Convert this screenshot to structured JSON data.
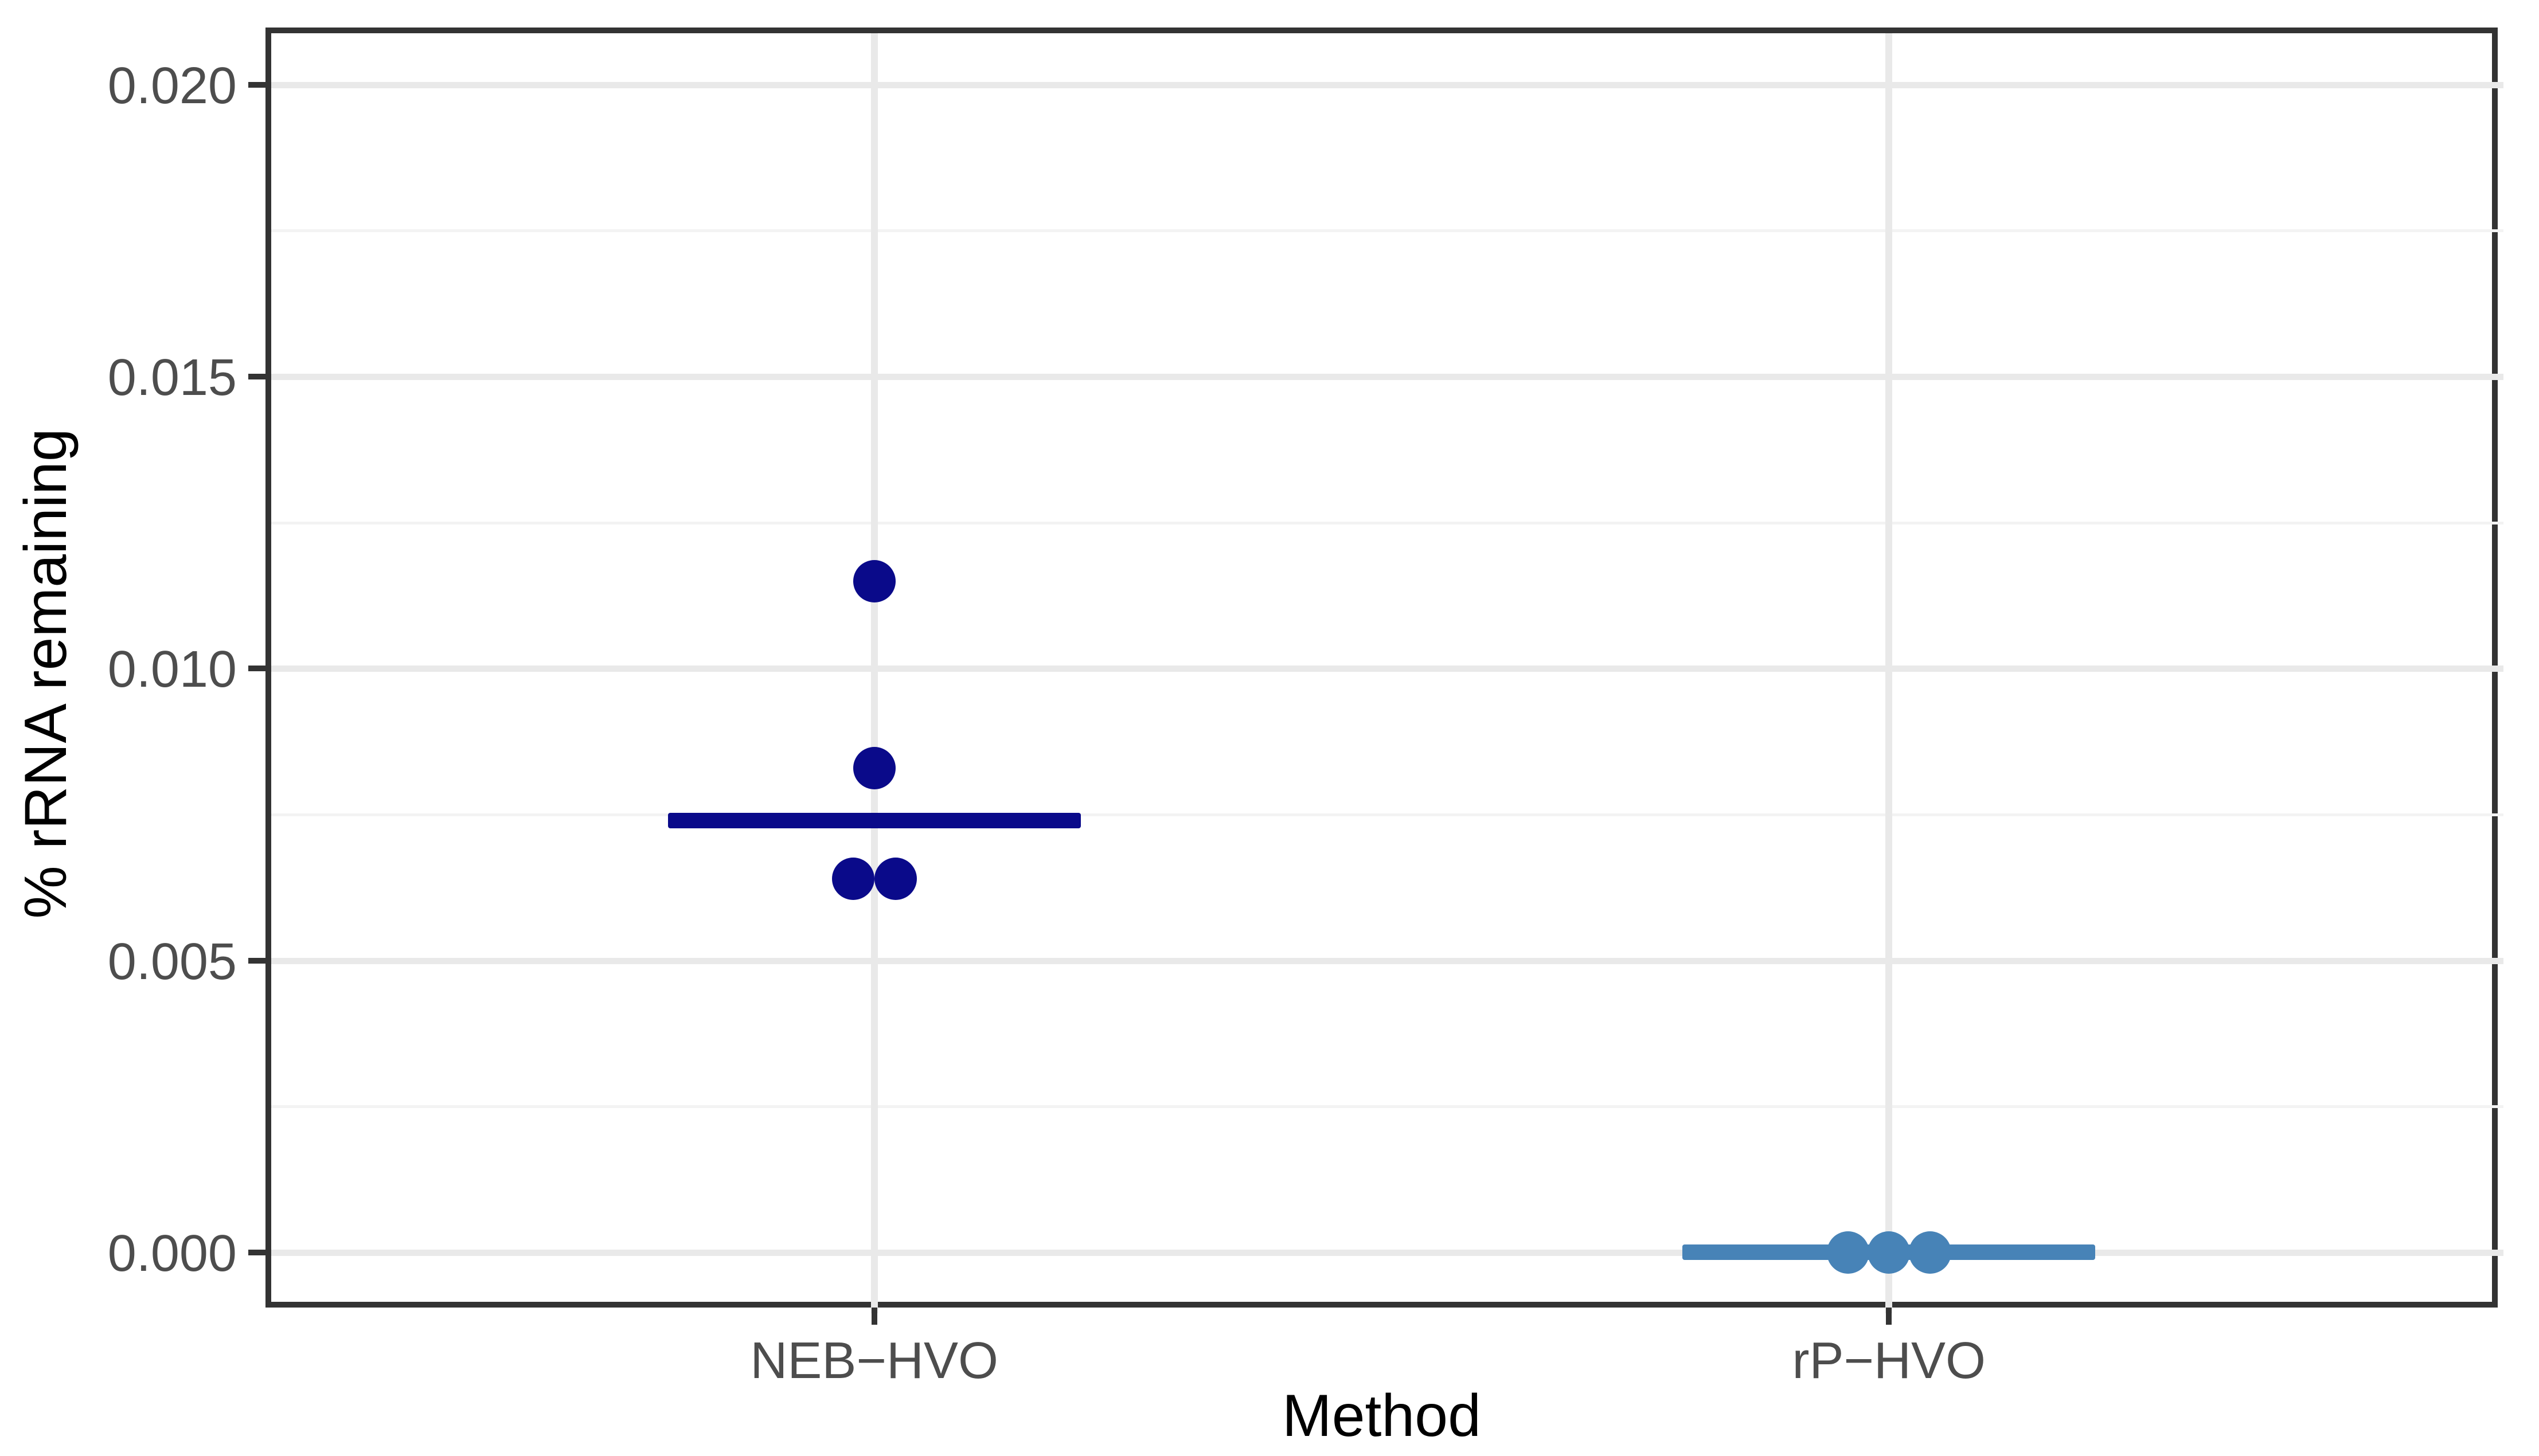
{
  "chart_data": {
    "type": "scatter",
    "title": "",
    "xlabel": "Method",
    "ylabel": "% rRNA remaining",
    "categories": [
      "NEB−HVO",
      "rP−HVO"
    ],
    "y_ticks": [
      0.0,
      0.005,
      0.01,
      0.015,
      0.02
    ],
    "y_tick_labels": [
      "0.000",
      "0.005",
      "0.010",
      "0.015",
      "0.020"
    ],
    "y_minor_ticks": [
      0.0025,
      0.0075,
      0.0125,
      0.0175
    ],
    "ylim": [
      -0.000943,
      0.02098
    ],
    "grid": {
      "major_y": true,
      "minor_y": true,
      "major_x_at_categories": true,
      "legend": "none"
    },
    "series": [
      {
        "name": "NEB−HVO",
        "color": "#0a0a8a",
        "points": [
          {
            "y": 0.0115,
            "dx_frac": 0
          },
          {
            "y": 0.0083,
            "dx_frac": 0
          },
          {
            "y": 0.0064,
            "dx_frac": -0.0095
          },
          {
            "y": 0.0064,
            "dx_frac": 0.0095
          }
        ],
        "median": 0.0074
      },
      {
        "name": "rP−HVO",
        "color": "#4783b7",
        "points": [
          {
            "y": 0.0,
            "dx_frac": -0.0183
          },
          {
            "y": 0.0,
            "dx_frac": 0
          },
          {
            "y": 0.0,
            "dx_frac": 0.0183
          }
        ],
        "median": 0.0
      }
    ]
  },
  "colors": {
    "background": "#ffffff",
    "panel_border": "#333333",
    "grid_major": "#e9e9e9",
    "grid_minor": "#f3f3f3",
    "tick_mark": "#333333",
    "tick_text": "#4d4d4d",
    "axis_title_text": "#000000",
    "series_neb": "#0a0a8a",
    "series_rp": "#4783b7"
  }
}
